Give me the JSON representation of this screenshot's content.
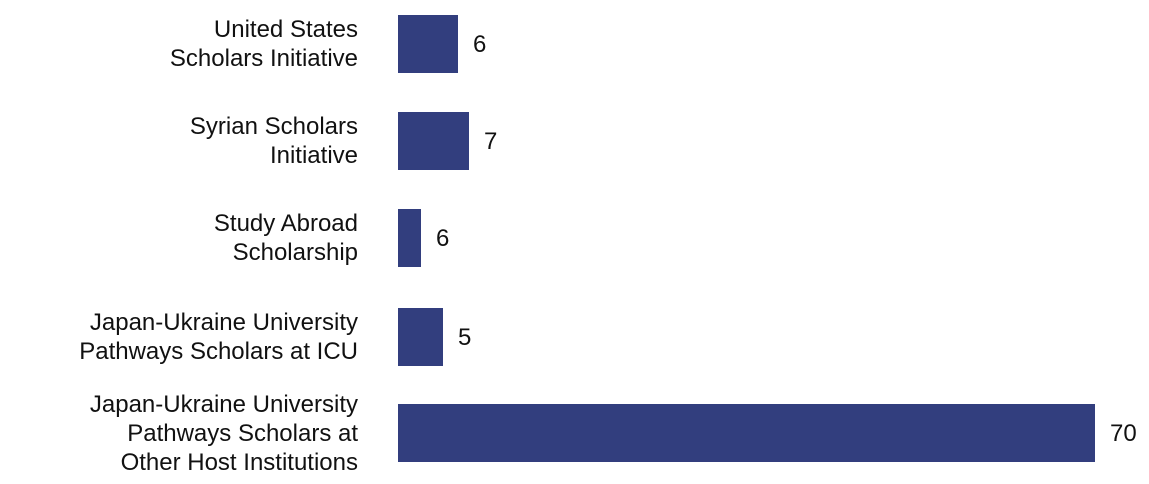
{
  "chart_data": {
    "type": "bar",
    "orientation": "horizontal",
    "categories": [
      "United States\nScholars Initiative",
      "Syrian Scholars\nInitiative",
      "Study Abroad\nScholarship",
      "Japan-Ukraine University\nPathways Scholars at ICU",
      "Japan-Ukraine University\nPathways Scholars at\nOther Host Institutions"
    ],
    "values": [
      6,
      7,
      6,
      5,
      70
    ],
    "title": "",
    "xlabel": "",
    "ylabel": "",
    "grid": false,
    "legend": "none",
    "bar_color": "#323E7E"
  }
}
